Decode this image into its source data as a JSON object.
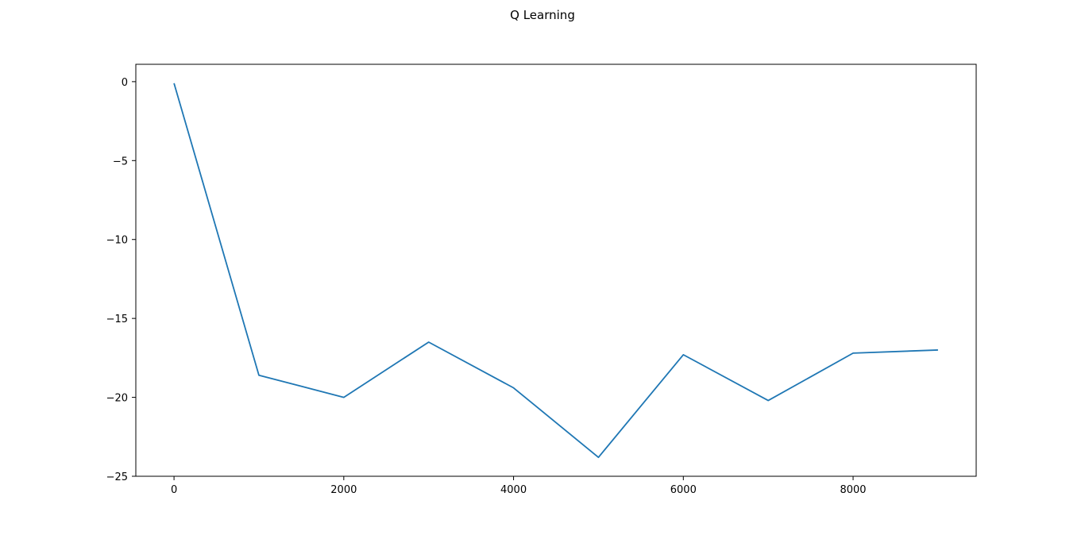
{
  "chart_data": {
    "type": "line",
    "title": "Q Learning",
    "xlabel": "",
    "ylabel": "",
    "xlim": [
      -450,
      9450
    ],
    "ylim": [
      -25,
      1.1
    ],
    "x_ticks": [
      0,
      2000,
      4000,
      6000,
      8000
    ],
    "x_tick_labels": [
      "0",
      "2000",
      "4000",
      "6000",
      "8000"
    ],
    "y_ticks": [
      0,
      -5,
      -10,
      -15,
      -20,
      -25
    ],
    "y_tick_labels": [
      "0",
      "−5",
      "−10",
      "−15",
      "−20",
      "−25"
    ],
    "grid": false,
    "legend": "none",
    "series": [
      {
        "color": "#1f77b4",
        "x": [
          0,
          1000,
          2000,
          3000,
          4000,
          5000,
          6000,
          7000,
          8000,
          9000
        ],
        "y": [
          -0.1,
          -18.6,
          -20.0,
          -16.5,
          -19.4,
          -23.8,
          -17.3,
          -20.2,
          -17.2,
          -17.0
        ]
      }
    ]
  }
}
